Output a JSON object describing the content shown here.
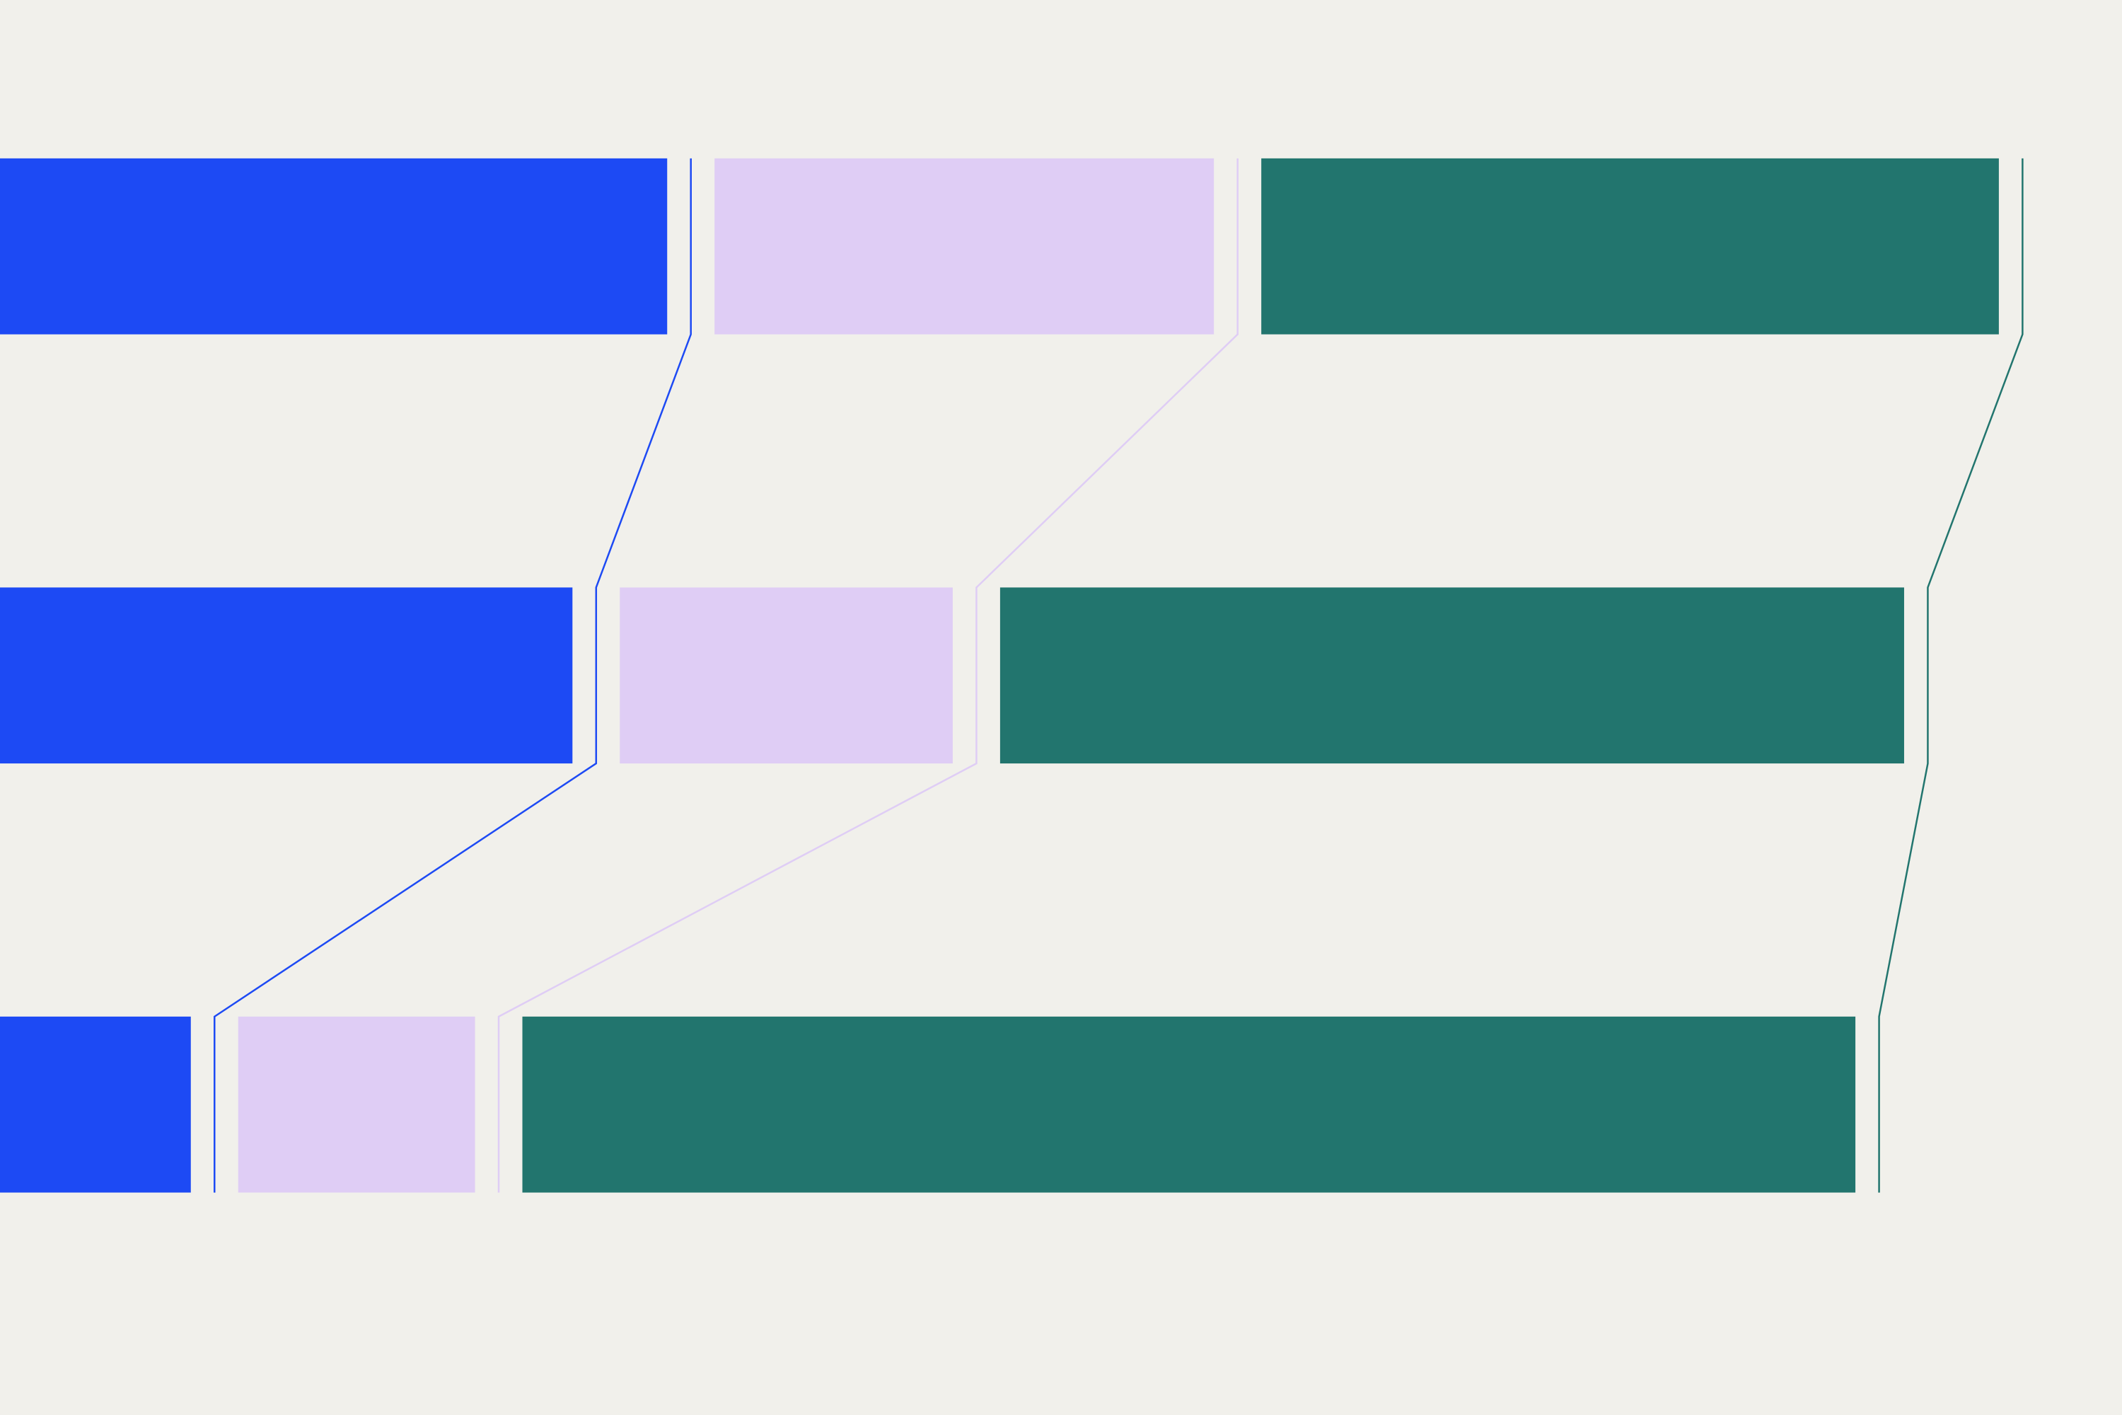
{
  "chart_data": {
    "type": "bar",
    "orientation": "horizontal",
    "stacked": true,
    "categories": [
      null,
      null,
      null
    ],
    "series": [
      {
        "color": "#1d4af4",
        "values": [
          49.3,
          42.3,
          14.1
        ]
      },
      {
        "color": "#dfcdf5",
        "values": [
          36.9,
          24.6,
          17.5
        ]
      },
      {
        "color": "#22756e",
        "values": [
          54.5,
          66.8,
          98.5
        ]
      }
    ],
    "connectors": true
  }
}
